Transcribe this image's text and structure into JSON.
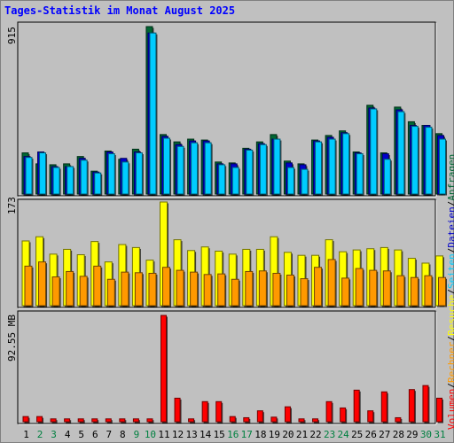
{
  "title": "Tages-Statistik im Monat August 2025",
  "colors": {
    "anfragen": "#006633",
    "dateien": "#0000cc",
    "seiten": "#00ccff",
    "besuche": "#ffff00",
    "rechner": "#ff9900",
    "volumen": "#ff0000",
    "background": "#c0c0c0",
    "weekday": "#000000",
    "weekend": "#008040"
  },
  "legend": [
    {
      "label": "Anfragen",
      "color": "#006633"
    },
    {
      "label": "Dateien",
      "color": "#0000cc"
    },
    {
      "label": "Seiten",
      "color": "#00ccff"
    },
    {
      "label": "Besuche",
      "color": "#ffff00"
    },
    {
      "label": "Rechner",
      "color": "#ff9900"
    },
    {
      "label": "Volumen",
      "color": "#ff0000"
    }
  ],
  "legend_separator": "/",
  "chart_data": {
    "type": "bar",
    "title": "Tages-Statistik im Monat August 2025",
    "categories": [
      "1",
      "2",
      "3",
      "4",
      "5",
      "6",
      "7",
      "8",
      "9",
      "10",
      "11",
      "12",
      "13",
      "14",
      "15",
      "16",
      "17",
      "18",
      "19",
      "20",
      "21",
      "22",
      "23",
      "24",
      "25",
      "26",
      "27",
      "28",
      "29",
      "30",
      "31"
    ],
    "weekend_days": [
      "2",
      "3",
      "9",
      "10",
      "16",
      "17",
      "23",
      "24",
      "30",
      "31"
    ],
    "panels": [
      {
        "id": "top",
        "max_label": "915",
        "ymax": 915,
        "series": [
          {
            "name": "Anfragen",
            "values": [
              225,
              165,
              160,
              165,
              205,
              125,
              235,
              190,
              245,
              915,
              325,
              285,
              300,
              295,
              175,
              170,
              250,
              285,
              325,
              180,
              165,
              295,
              320,
              345,
              230,
              485,
              225,
              475,
              395,
              375,
              330
            ]
          },
          {
            "name": "Dateien",
            "values": [
              205,
              230,
              150,
              150,
              195,
              120,
              230,
              195,
              230,
              880,
              315,
              270,
              290,
              290,
              165,
              165,
              245,
              275,
              300,
              170,
              160,
              290,
              310,
              335,
              225,
              470,
              220,
              460,
              375,
              375,
              320
            ]
          },
          {
            "name": "Seiten",
            "values": [
              200,
              225,
              145,
              150,
              185,
              115,
              220,
              175,
              225,
              880,
              305,
              260,
              280,
              280,
              160,
              145,
              240,
              270,
              300,
              145,
              135,
              285,
              300,
              330,
              220,
              465,
              190,
              450,
              370,
              365,
              300
            ]
          }
        ]
      },
      {
        "id": "middle",
        "max_label": "173",
        "ymax": 173,
        "series": [
          {
            "name": "Besuche",
            "values": [
              108,
              115,
              86,
              94,
              85,
              107,
              73,
              102,
              97,
              76,
              173,
              110,
              92,
              98,
              91,
              86,
              94,
              94,
              115,
              89,
              84,
              84,
              110,
              90,
              93,
              95,
              97,
              93,
              79,
              71,
              83
            ]
          },
          {
            "name": "Rechner",
            "values": [
              66,
              73,
              48,
              57,
              49,
              66,
              44,
              56,
              55,
              54,
              64,
              59,
              56,
              52,
              53,
              44,
              57,
              58,
              54,
              51,
              45,
              64,
              77,
              46,
              62,
              59,
              58,
              50,
              47,
              50,
              47
            ]
          }
        ]
      },
      {
        "id": "bottom",
        "max_label": "92.55 MB",
        "ymax": 92.55,
        "series": [
          {
            "name": "Volumen",
            "values": [
              4.5,
              4.5,
              2.5,
              2.5,
              2.5,
              2.5,
              2.5,
              2.5,
              2.5,
              2.5,
              92.55,
              20.5,
              2.5,
              17.5,
              17.5,
              4.5,
              3.5,
              9.5,
              4.0,
              13.0,
              2.5,
              2.5,
              17.5,
              12.0,
              27.5,
              9.5,
              26.0,
              3.5,
              28.0,
              31.5,
              20.5
            ]
          }
        ]
      }
    ]
  }
}
